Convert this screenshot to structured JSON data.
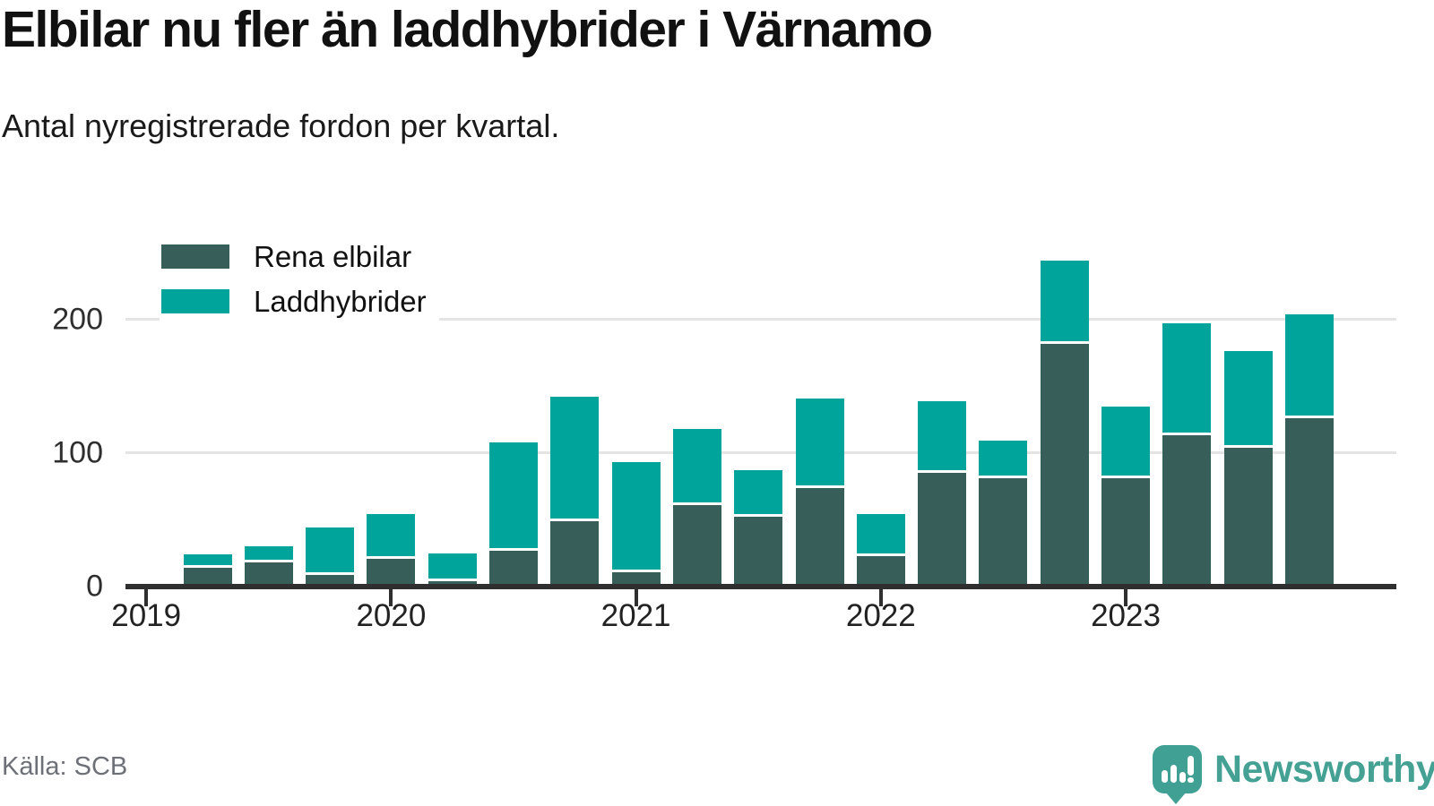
{
  "header": {
    "title": "Elbilar nu fler än laddhybrider i Värnamo",
    "subtitle": "Antal nyregistrerade fordon per kvartal."
  },
  "legend": [
    {
      "label": "Rena elbilar",
      "color": "#375e58"
    },
    {
      "label": "Laddhybrider",
      "color": "#00a49b"
    }
  ],
  "chart_data": {
    "type": "bar",
    "stacked": true,
    "title": "Elbilar nu fler än laddhybrider i Värnamo",
    "subtitle": "Antal nyregistrerade fordon per kvartal.",
    "categories": [
      "2019 Q1",
      "2019 Q2",
      "2019 Q3",
      "2019 Q4",
      "2020 Q1",
      "2020 Q2",
      "2020 Q3",
      "2020 Q4",
      "2021 Q1",
      "2021 Q2",
      "2021 Q3",
      "2021 Q4",
      "2022 Q1",
      "2022 Q2",
      "2022 Q3",
      "2022 Q4",
      "2023 Q1",
      "2023 Q2",
      "2023 Q3"
    ],
    "series": [
      {
        "name": "Rena elbilar",
        "color": "#375e58",
        "values": [
          15,
          19,
          10,
          22,
          5,
          28,
          50,
          12,
          62,
          53,
          75,
          24,
          86,
          82,
          183,
          82,
          114,
          105,
          127
        ]
      },
      {
        "name": "Laddhybrider",
        "color": "#00a49b",
        "values": [
          9,
          11,
          34,
          32,
          20,
          80,
          92,
          81,
          56,
          34,
          66,
          30,
          53,
          27,
          61,
          53,
          83,
          71,
          77
        ]
      }
    ],
    "xticklabels": [
      "2019",
      "2020",
      "2021",
      "2022",
      "2023"
    ],
    "yticks": [
      0,
      100,
      200
    ],
    "ylim": [
      0,
      260
    ],
    "grid": "horizontal",
    "legend_position": "top-left",
    "colors": {
      "grid": "#e4e4e4",
      "axis": "#2f2f2f",
      "background": "#ffffff"
    }
  },
  "footer": {
    "source": "Källa: SCB",
    "brand": "Newsworthy"
  }
}
